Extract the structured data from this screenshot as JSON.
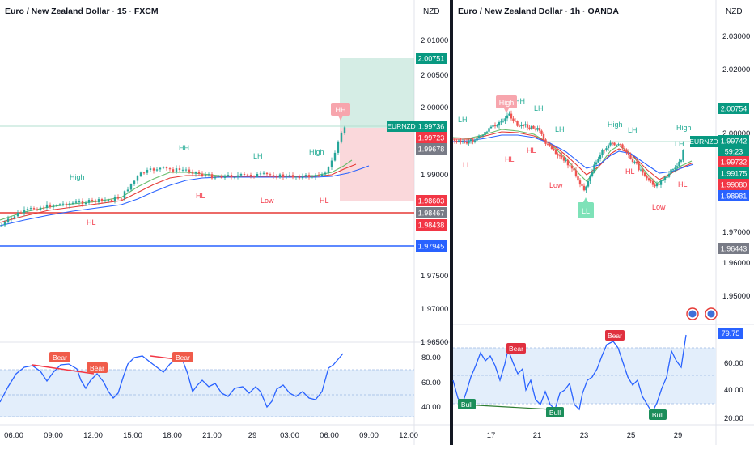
{
  "left": {
    "title": "Euro / New Zealand Dollar · 15 · FXCM",
    "currency": "NZD",
    "symbol_tag": "EURNZD",
    "price_ticks": [
      "2.01000",
      "2.00500",
      "2.00000",
      "1.99000",
      "1.97500",
      "1.97000",
      "1.96500"
    ],
    "price_badges": [
      {
        "label": "2.00751",
        "color": "#089981"
      },
      {
        "label": "1.99736",
        "color": "#089981"
      },
      {
        "label": "1.99723",
        "color": "#f23645"
      },
      {
        "label": "1.99678",
        "color": "#787b86"
      },
      {
        "label": "1.98603",
        "color": "#f23645"
      },
      {
        "label": "1.98467",
        "color": "#787b86"
      },
      {
        "label": "1.98438",
        "color": "#f23645"
      },
      {
        "label": "1.97945",
        "color": "#2962ff"
      }
    ],
    "time_ticks": [
      "06:00",
      "09:00",
      "12:00",
      "15:00",
      "18:00",
      "21:00",
      "29",
      "03:00",
      "06:00",
      "09:00",
      "12:00"
    ],
    "structure_labels": [
      {
        "text": "High",
        "color": "#22ab94"
      },
      {
        "text": "HL",
        "color": "#f23645"
      },
      {
        "text": "HH",
        "color": "#22ab94"
      },
      {
        "text": "HL",
        "color": "#f23645"
      },
      {
        "text": "LH",
        "color": "#22ab94"
      },
      {
        "text": "Low",
        "color": "#f23645"
      },
      {
        "text": "High",
        "color": "#22ab94"
      },
      {
        "text": "HL",
        "color": "#f23645"
      }
    ],
    "hh_tag": "HH",
    "rsi_ticks": [
      "80.00",
      "60.00",
      "40.00"
    ],
    "rsi_bear_tags": [
      "Bear",
      "Bear",
      "Bear"
    ]
  },
  "right": {
    "title": "Euro / New Zealand Dollar · 1h · OANDA",
    "currency": "NZD",
    "symbol_tag": "EURNZD",
    "price_ticks": [
      "2.03000",
      "2.02000",
      "2.00000",
      "1.97000",
      "1.96000",
      "1.95000"
    ],
    "price_badges": [
      {
        "label": "2.00754",
        "color": "#089981"
      },
      {
        "label": "1.99742",
        "color": "#089981"
      },
      {
        "label": "59:23",
        "color": "#089981"
      },
      {
        "label": "1.99732",
        "color": "#f23645"
      },
      {
        "label": "1.99175",
        "color": "#089981"
      },
      {
        "label": "1.99080",
        "color": "#f23645"
      },
      {
        "label": "1.98981",
        "color": "#2962ff"
      },
      {
        "label": "1.96443",
        "color": "#787b86"
      }
    ],
    "time_ticks": [
      "17",
      "21",
      "23",
      "25",
      "29"
    ],
    "structure_labels": [
      {
        "text": "LH",
        "color": "#22ab94"
      },
      {
        "text": "LL",
        "color": "#f23645"
      },
      {
        "text": "HL",
        "color": "#f23645"
      },
      {
        "text": "HH",
        "color": "#22ab94"
      },
      {
        "text": "LH",
        "color": "#22ab94"
      },
      {
        "text": "HL",
        "color": "#f23645"
      },
      {
        "text": "LH",
        "color": "#22ab94"
      },
      {
        "text": "Low",
        "color": "#f23645"
      },
      {
        "text": "High",
        "color": "#22ab94"
      },
      {
        "text": "LH",
        "color": "#22ab94"
      },
      {
        "text": "HL",
        "color": "#f23645"
      },
      {
        "text": "Low",
        "color": "#f23645"
      },
      {
        "text": "High",
        "color": "#22ab94"
      },
      {
        "text": "LH",
        "color": "#22ab94"
      },
      {
        "text": "HL",
        "color": "#f23645"
      }
    ],
    "high_tag": "High",
    "ll_tag": "LL",
    "rsi_value_badge": "79.75",
    "rsi_ticks": [
      "60.00",
      "40.00",
      "20.00"
    ],
    "rsi_bull_tags": [
      "Bull",
      "Bull",
      "Bull"
    ],
    "rsi_bear_tags": [
      "Bear",
      "Bear"
    ]
  },
  "chart_data": [
    {
      "type": "line",
      "title": "Euro / New Zealand Dollar · 15 · FXCM",
      "note_series": "close price path (approx)",
      "x": [
        "06:00",
        "07:00",
        "08:00",
        "09:00",
        "10:00",
        "11:00",
        "12:00",
        "13:00",
        "14:00",
        "15:00",
        "16:00",
        "17:00",
        "18:00",
        "19:00",
        "20:00",
        "21:00",
        "22:00",
        "23:00",
        "29",
        "01:00",
        "02:00",
        "03:00",
        "04:00",
        "05:00",
        "06:00",
        "06:30",
        "07:00"
      ],
      "series": [
        {
          "values": [
            1.983,
            1.9848,
            1.9853,
            1.9852,
            1.9856,
            1.986,
            1.9862,
            1.9866,
            1.987,
            1.9893,
            1.9905,
            1.99,
            1.991,
            1.9902,
            1.9898,
            1.9896,
            1.9897,
            1.9897,
            1.9899,
            1.9898,
            1.9897,
            1.9897,
            1.9896,
            1.9899,
            1.9917,
            1.996,
            1.9974
          ]
        }
      ],
      "ylim": [
        1.964,
        2.012
      ]
    },
    {
      "type": "line",
      "title": "Euro / New Zealand Dollar · 1h · OANDA",
      "x": [
        "16",
        "17",
        "18",
        "19",
        "20",
        "21",
        "22",
        "23",
        "24",
        "25",
        "26",
        "27",
        "28",
        "29"
      ],
      "series": [
        {
          "values": [
            1.9985,
            1.9992,
            2.0,
            2.0006,
            1.999,
            1.9968,
            1.9945,
            1.9915,
            1.998,
            1.9975,
            1.9918,
            1.9912,
            1.993,
            1.9974
          ]
        }
      ],
      "ylim": [
        1.943,
        2.035
      ]
    }
  ]
}
